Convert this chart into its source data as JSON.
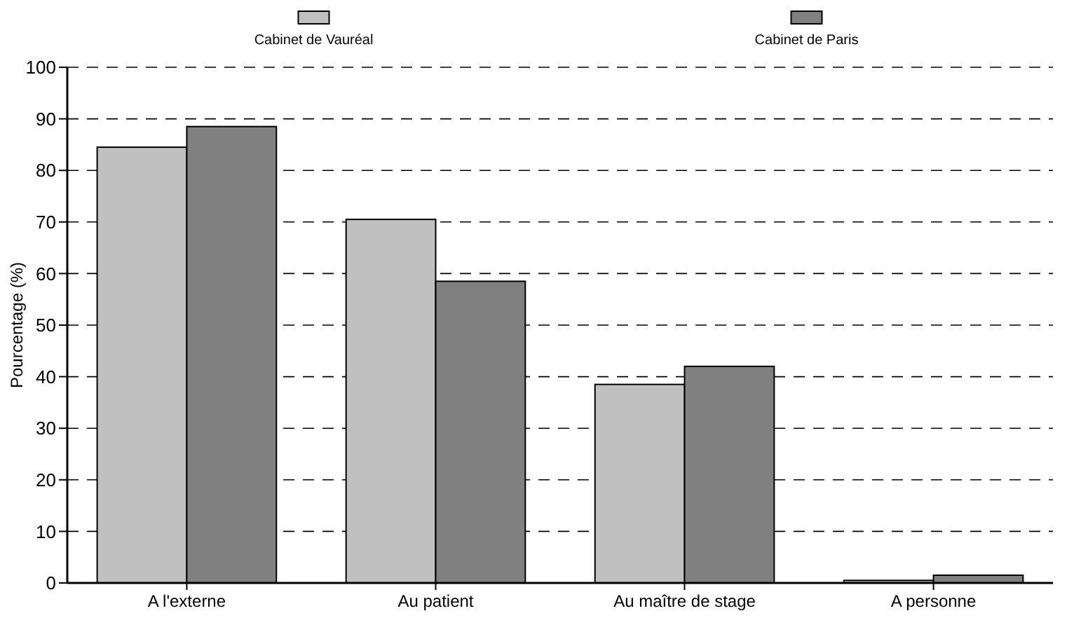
{
  "chart_data": {
    "type": "bar",
    "ylabel": "Pourcentage (%)",
    "categories": [
      "A l'externe",
      "Au patient",
      "Au maître de stage",
      "A personne"
    ],
    "series": [
      {
        "name": "Cabinet de Vauréal",
        "color": "#c0c0c0",
        "values": [
          84.5,
          70.5,
          38.5,
          0.5
        ]
      },
      {
        "name": "Cabinet de Paris",
        "color": "#808080",
        "values": [
          88.5,
          58.5,
          42,
          1.5
        ]
      }
    ],
    "ylim": [
      0,
      100
    ],
    "yticks": [
      0,
      10,
      20,
      30,
      40,
      50,
      60,
      70,
      80,
      90,
      100
    ],
    "grid": "y",
    "legend": "top"
  }
}
